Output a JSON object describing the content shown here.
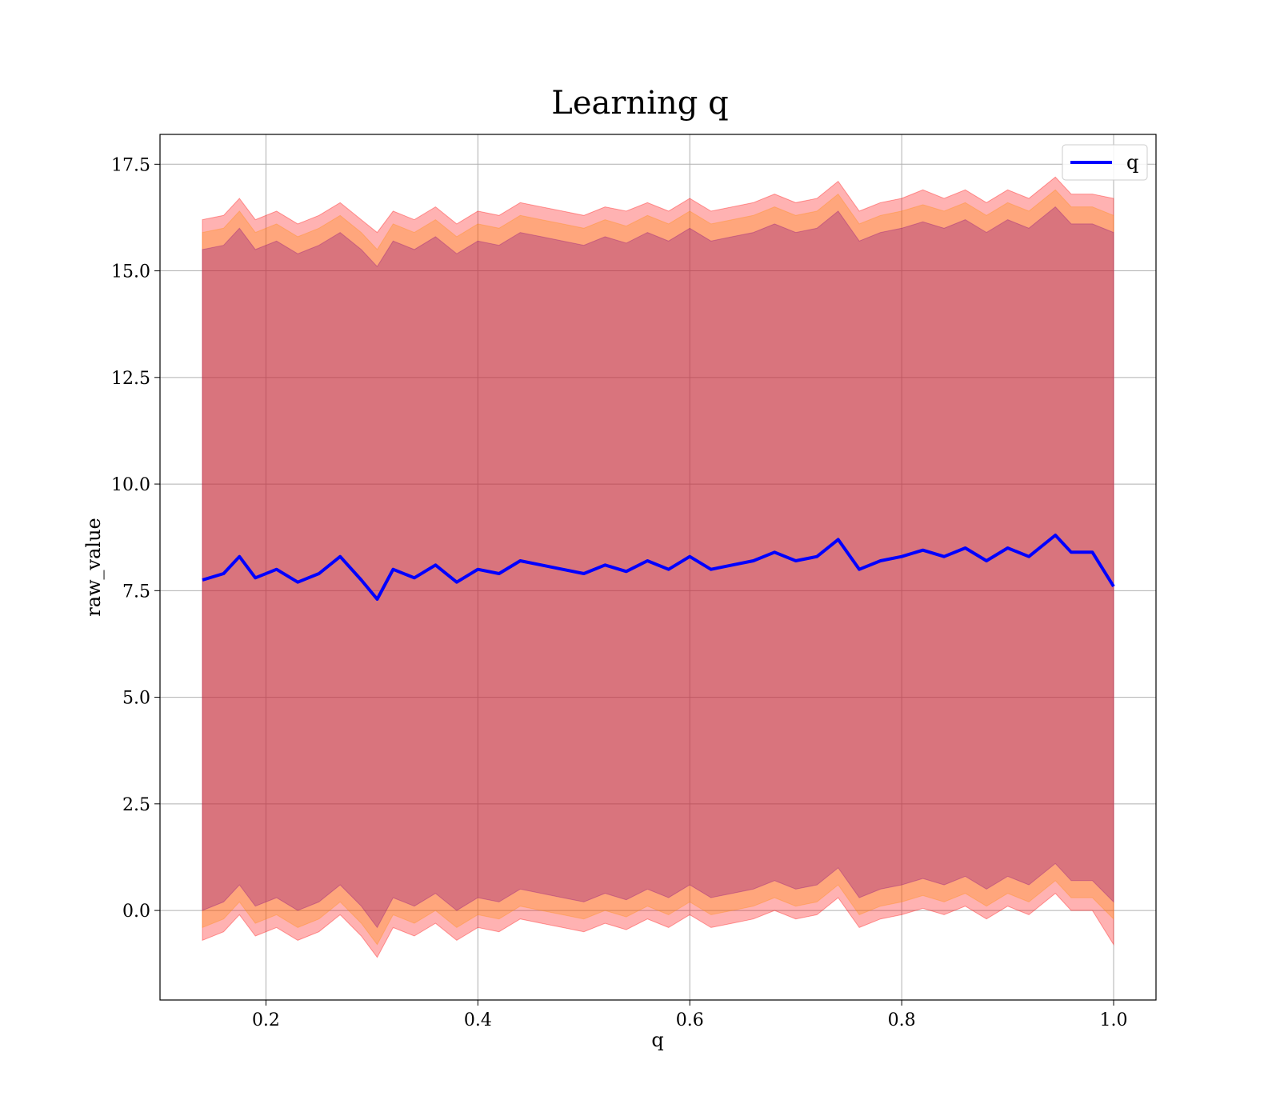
{
  "chart_data": {
    "type": "line",
    "title": "Learning q",
    "xlabel": "q",
    "ylabel": "raw_value",
    "xlim": [
      0.1,
      1.04
    ],
    "ylim": [
      -2.1,
      18.2
    ],
    "xticks": [
      "0.2",
      "0.4",
      "0.6",
      "0.8",
      "1.0"
    ],
    "yticks": [
      "0.0",
      "2.5",
      "5.0",
      "7.5",
      "10.0",
      "12.5",
      "15.0",
      "17.5"
    ],
    "grid": true,
    "legend": {
      "placement": "top-right",
      "entries": [
        "q"
      ]
    },
    "colors": {
      "line": "#0000ff",
      "band_outer": "#ff0000",
      "band_middle": "#ff8c00",
      "band_inner": "#800080"
    },
    "series": [
      {
        "name": "q",
        "x": [
          0.14,
          0.16,
          0.175,
          0.19,
          0.21,
          0.23,
          0.25,
          0.27,
          0.29,
          0.305,
          0.32,
          0.34,
          0.36,
          0.38,
          0.4,
          0.42,
          0.44,
          0.46,
          0.48,
          0.5,
          0.52,
          0.54,
          0.56,
          0.58,
          0.6,
          0.62,
          0.64,
          0.66,
          0.68,
          0.7,
          0.72,
          0.74,
          0.76,
          0.78,
          0.8,
          0.82,
          0.84,
          0.86,
          0.88,
          0.9,
          0.92,
          0.945,
          0.96,
          0.98,
          1.0
        ],
        "values": [
          7.75,
          7.9,
          8.3,
          7.8,
          8.0,
          7.7,
          7.9,
          8.3,
          7.75,
          7.3,
          8.0,
          7.8,
          8.1,
          7.7,
          8.0,
          7.9,
          8.2,
          8.1,
          8.0,
          7.9,
          8.1,
          7.95,
          8.2,
          8.0,
          8.3,
          8.0,
          8.1,
          8.2,
          8.4,
          8.2,
          8.3,
          8.7,
          8.0,
          8.2,
          8.3,
          8.45,
          8.3,
          8.5,
          8.2,
          8.5,
          8.3,
          8.8,
          8.4,
          8.4,
          7.6
        ],
        "band_outer": {
          "upper": [
            16.2,
            16.3,
            16.7,
            16.2,
            16.4,
            16.1,
            16.3,
            16.6,
            16.2,
            15.9,
            16.4,
            16.2,
            16.5,
            16.1,
            16.4,
            16.3,
            16.6,
            16.5,
            16.4,
            16.3,
            16.5,
            16.4,
            16.6,
            16.4,
            16.7,
            16.4,
            16.5,
            16.6,
            16.8,
            16.6,
            16.7,
            17.1,
            16.4,
            16.6,
            16.7,
            16.9,
            16.7,
            16.9,
            16.6,
            16.9,
            16.7,
            17.2,
            16.8,
            16.8,
            16.7
          ],
          "lower": [
            -0.7,
            -0.5,
            -0.1,
            -0.6,
            -0.4,
            -0.7,
            -0.5,
            -0.1,
            -0.6,
            -1.1,
            -0.4,
            -0.6,
            -0.3,
            -0.7,
            -0.4,
            -0.5,
            -0.2,
            -0.3,
            -0.4,
            -0.5,
            -0.3,
            -0.45,
            -0.2,
            -0.4,
            -0.1,
            -0.4,
            -0.3,
            -0.2,
            0.0,
            -0.2,
            -0.1,
            0.3,
            -0.4,
            -0.2,
            -0.1,
            0.05,
            -0.1,
            0.1,
            -0.2,
            0.1,
            -0.1,
            0.4,
            0.0,
            0.0,
            -0.8
          ]
        },
        "band_middle": {
          "upper": [
            15.9,
            16.0,
            16.4,
            15.9,
            16.1,
            15.8,
            16.0,
            16.3,
            15.9,
            15.5,
            16.1,
            15.9,
            16.2,
            15.8,
            16.1,
            16.0,
            16.3,
            16.2,
            16.1,
            16.0,
            16.2,
            16.05,
            16.3,
            16.1,
            16.4,
            16.1,
            16.2,
            16.3,
            16.5,
            16.3,
            16.4,
            16.8,
            16.1,
            16.3,
            16.4,
            16.55,
            16.4,
            16.6,
            16.3,
            16.6,
            16.4,
            16.9,
            16.5,
            16.5,
            16.3
          ],
          "lower": [
            -0.4,
            -0.2,
            0.2,
            -0.3,
            -0.1,
            -0.4,
            -0.2,
            0.2,
            -0.3,
            -0.8,
            -0.1,
            -0.3,
            0.0,
            -0.4,
            -0.1,
            -0.2,
            0.1,
            0.0,
            -0.1,
            -0.2,
            0.0,
            -0.15,
            0.1,
            -0.1,
            0.2,
            -0.1,
            0.0,
            0.1,
            0.3,
            0.1,
            0.2,
            0.6,
            -0.1,
            0.1,
            0.2,
            0.35,
            0.2,
            0.4,
            0.1,
            0.4,
            0.2,
            0.7,
            0.3,
            0.3,
            -0.2
          ]
        },
        "band_inner": {
          "upper": [
            15.5,
            15.6,
            16.0,
            15.5,
            15.7,
            15.4,
            15.6,
            15.9,
            15.5,
            15.1,
            15.7,
            15.5,
            15.8,
            15.4,
            15.7,
            15.6,
            15.9,
            15.8,
            15.7,
            15.6,
            15.8,
            15.65,
            15.9,
            15.7,
            16.0,
            15.7,
            15.8,
            15.9,
            16.1,
            15.9,
            16.0,
            16.4,
            15.7,
            15.9,
            16.0,
            16.15,
            16.0,
            16.2,
            15.9,
            16.2,
            16.0,
            16.5,
            16.1,
            16.1,
            15.9
          ],
          "lower": [
            0.0,
            0.2,
            0.6,
            0.1,
            0.3,
            0.0,
            0.2,
            0.6,
            0.1,
            -0.4,
            0.3,
            0.1,
            0.4,
            0.0,
            0.3,
            0.2,
            0.5,
            0.4,
            0.3,
            0.2,
            0.4,
            0.25,
            0.5,
            0.3,
            0.6,
            0.3,
            0.4,
            0.5,
            0.7,
            0.5,
            0.6,
            1.0,
            0.3,
            0.5,
            0.6,
            0.75,
            0.6,
            0.8,
            0.5,
            0.8,
            0.6,
            1.1,
            0.7,
            0.7,
            0.2
          ]
        }
      }
    ]
  }
}
